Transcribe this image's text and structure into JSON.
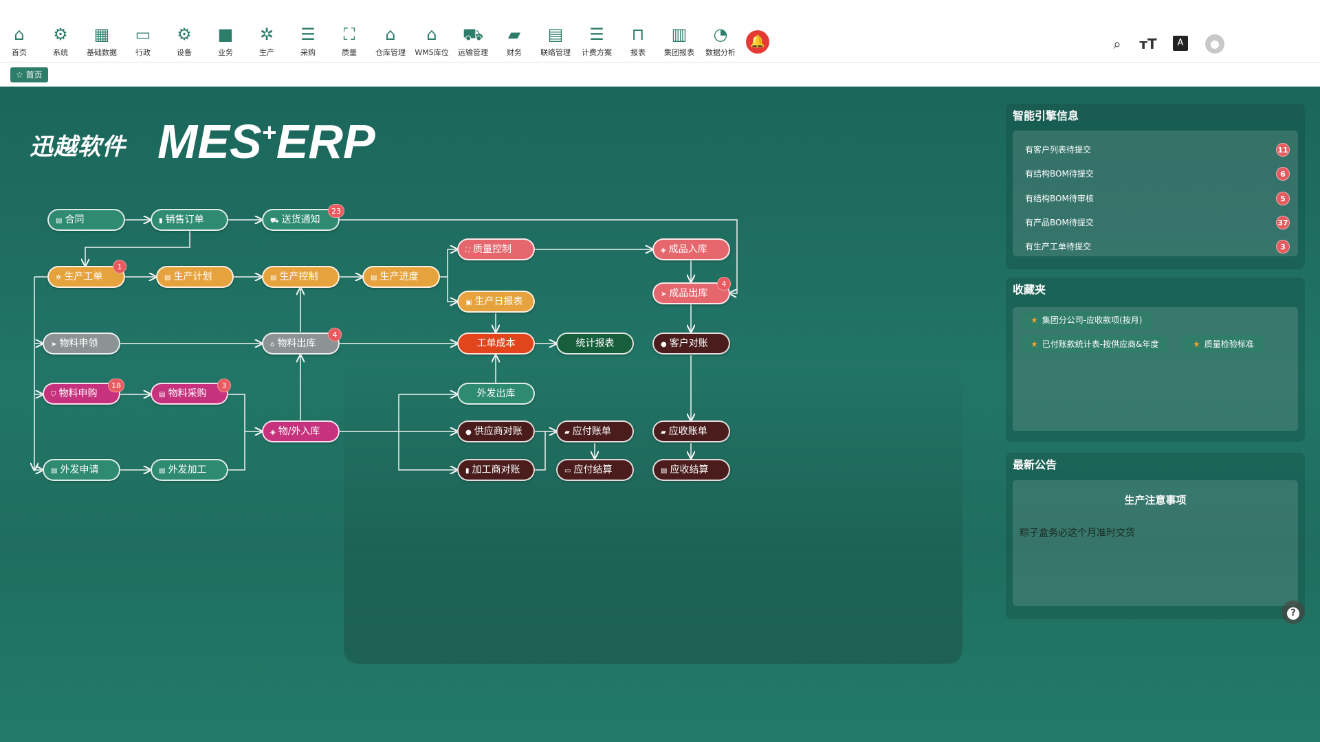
{
  "nav": {
    "items": [
      {
        "label": "首页",
        "icon": "home-icon"
      },
      {
        "label": "系统",
        "icon": "gear-icon"
      },
      {
        "label": "基础数据",
        "icon": "building-icon"
      },
      {
        "label": "行政",
        "icon": "briefcase-icon"
      },
      {
        "label": "设备",
        "icon": "gear-icon"
      },
      {
        "label": "业务",
        "icon": "briefcase-icon"
      },
      {
        "label": "生产",
        "icon": "gears-icon"
      },
      {
        "label": "采购",
        "icon": "clipboard-icon"
      },
      {
        "label": "质量",
        "icon": "scan-icon"
      },
      {
        "label": "仓库管理",
        "icon": "warehouse-icon"
      },
      {
        "label": "WMS库位",
        "icon": "warehouse-icon"
      },
      {
        "label": "运输管理",
        "icon": "truck-icon"
      },
      {
        "label": "财务",
        "icon": "wallet-icon"
      },
      {
        "label": "联络管理",
        "icon": "chat-icon"
      },
      {
        "label": "计费方案",
        "icon": "coins-icon"
      },
      {
        "label": "报表",
        "icon": "presentation-icon"
      },
      {
        "label": "集团报表",
        "icon": "office-icon"
      },
      {
        "label": "数据分析",
        "icon": "pie-chart-icon"
      }
    ],
    "bell_color": "#e53935"
  },
  "toolbar": {
    "search": "search-icon",
    "font": "font-size-icon",
    "translate": "translate-icon",
    "avatar": "avatar-icon"
  },
  "breadcrumb": {
    "home": "首页"
  },
  "logo": {
    "cn": "迅越软件",
    "en_a": "MES",
    "plus": "+",
    "en_b": "ERP"
  },
  "flow": {
    "nodes": {
      "contract": "合同",
      "sales_order": "销售订单",
      "delivery_notice": "送货通知",
      "work_order": "生产工单",
      "prod_plan": "生产计划",
      "prod_control": "生产控制",
      "prod_progress": "生产进度",
      "quality": "质量控制",
      "fg_in": "成品入库",
      "daily_report": "生产日报表",
      "fg_out": "成品出库",
      "mat_request": "物料申领",
      "mat_out": "物料出库",
      "wo_cost": "工单成本",
      "stats": "统计报表",
      "cust_recon": "客户对账",
      "mat_apply": "物料申购",
      "mat_purchase": "物料采购",
      "out_ship": "外发出库",
      "in_stock": "物/外入库",
      "supp_recon": "供应商对账",
      "payable": "应付账单",
      "receivable": "应收账单",
      "out_apply": "外发申请",
      "out_process": "外发加工",
      "proc_recon": "加工商对账",
      "pay_settle": "应付结算",
      "recv_settle": "应收结算"
    },
    "badges": {
      "delivery_notice": "23",
      "work_order": "1",
      "fg_out": "4",
      "mat_out": "4",
      "mat_apply": "18",
      "mat_purchase": "3"
    },
    "colors": {
      "teal": "#2e8a70",
      "orange": "#e6a23c",
      "pink": "#e5676d",
      "gray": "#8c9393",
      "magenta": "#c6327d",
      "maroon": "#4a1c1c",
      "dark_green": "#175f3c",
      "red": "#e2451b"
    }
  },
  "engine": {
    "title": "智能引擎信息",
    "items": [
      {
        "label": "有客户列表待提交",
        "count": "11"
      },
      {
        "label": "有结构BOM待提交",
        "count": "6"
      },
      {
        "label": "有结构BOM待审核",
        "count": "5"
      },
      {
        "label": "有产品BOM待提交",
        "count": "37"
      },
      {
        "label": "有生产工单待提交",
        "count": "3"
      }
    ]
  },
  "favorites": {
    "title": "收藏夹",
    "items": [
      "集团分公司-应收款项(按月)",
      "已付账款统计表-按供应商&年度",
      "质量检验标准"
    ]
  },
  "notice": {
    "title": "最新公告",
    "heading": "生产注意事项",
    "body": "粽子盒务必这个月准时交货"
  }
}
